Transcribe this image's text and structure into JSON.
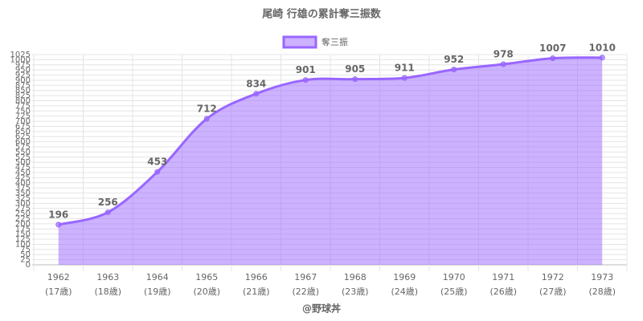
{
  "chart_data": {
    "type": "line",
    "title": "尾崎 行雄の累計奪三振数",
    "categories": [
      [
        "1962",
        "(17歳)"
      ],
      [
        "1963",
        "(18歳)"
      ],
      [
        "1964",
        "(19歳)"
      ],
      [
        "1965",
        "(20歳)"
      ],
      [
        "1966",
        "(21歳)"
      ],
      [
        "1967",
        "(22歳)"
      ],
      [
        "1968",
        "(23歳)"
      ],
      [
        "1969",
        "(24歳)"
      ],
      [
        "1970",
        "(25歳)"
      ],
      [
        "1971",
        "(26歳)"
      ],
      [
        "1972",
        "(27歳)"
      ],
      [
        "1973",
        "(28歳)"
      ]
    ],
    "series": [
      {
        "name": "奪三振",
        "color": "#9966ff",
        "values": [
          196,
          256,
          453,
          712,
          834,
          901,
          905,
          911,
          952,
          978,
          1007,
          1010
        ]
      }
    ],
    "ylim": [
      0,
      1025
    ],
    "yticks": [
      0,
      25,
      50,
      75,
      100,
      125,
      150,
      175,
      200,
      225,
      250,
      275,
      300,
      325,
      350,
      375,
      400,
      425,
      450,
      475,
      500,
      525,
      550,
      575,
      600,
      625,
      650,
      675,
      700,
      725,
      750,
      775,
      800,
      825,
      850,
      875,
      900,
      925,
      950,
      975,
      1000,
      1025
    ],
    "grid": true,
    "fill": true,
    "legend": "top",
    "footer": "@野球丼"
  }
}
